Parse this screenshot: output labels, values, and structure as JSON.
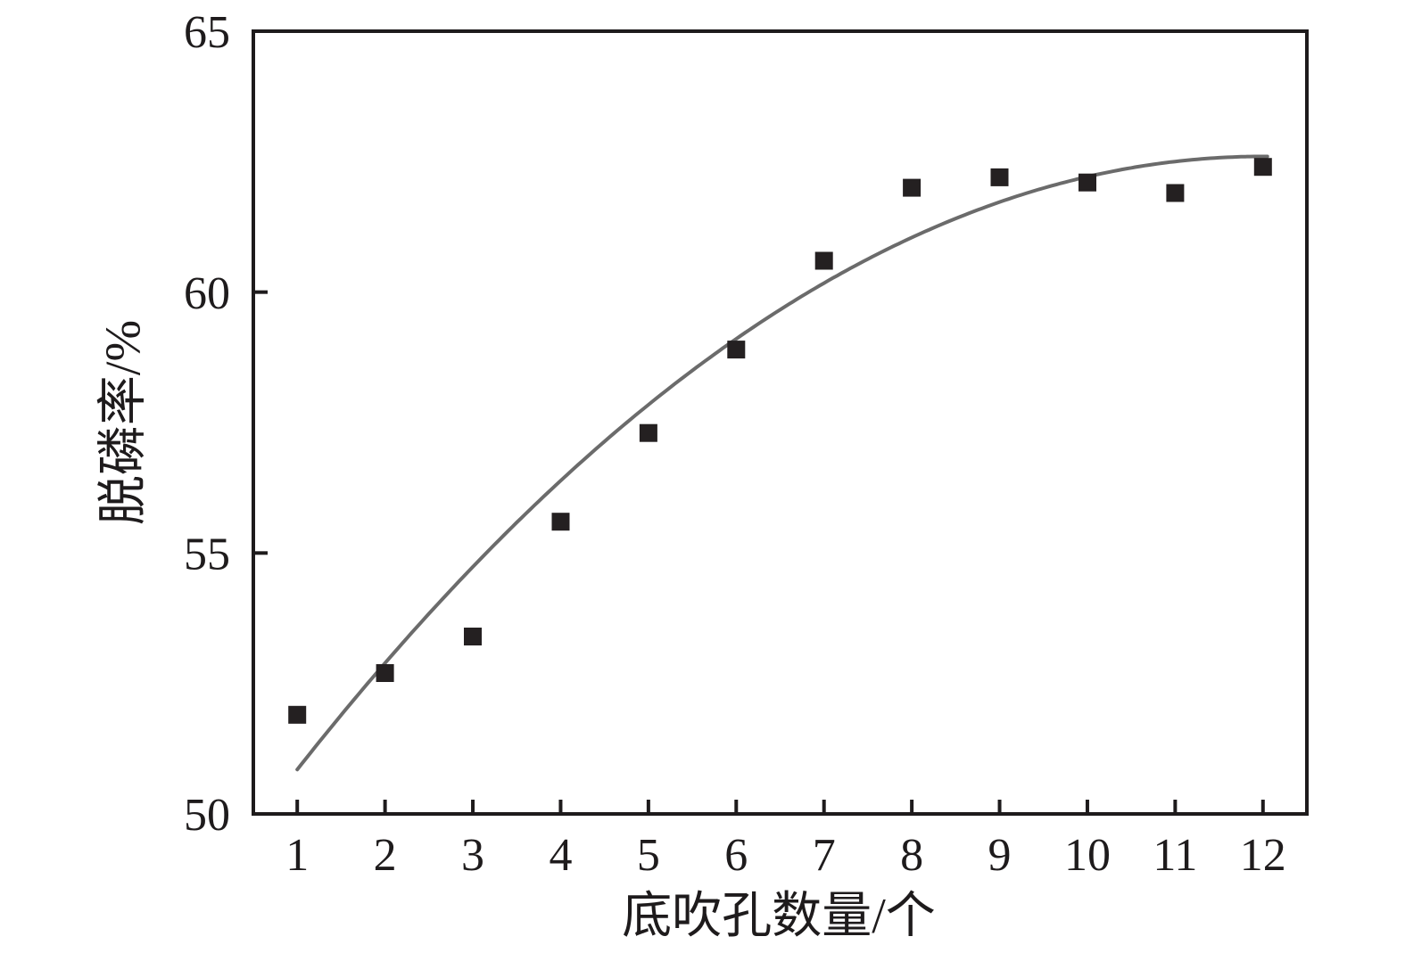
{
  "figure": {
    "background": "#ffffff",
    "axis_color": "#1e1b1c",
    "text_color": "#1e1b1c",
    "curve_color": "#6b6b6b",
    "marker_color": "#242021"
  },
  "chart_data": {
    "type": "scatter",
    "title": "",
    "xlabel": "底吹孔数量/个",
    "ylabel": "脱磷率/%",
    "x": [
      1,
      2,
      3,
      4,
      5,
      6,
      7,
      8,
      9,
      10,
      11,
      12
    ],
    "y": [
      51.9,
      52.7,
      53.4,
      55.6,
      57.3,
      58.9,
      60.6,
      62.0,
      62.2,
      62.1,
      61.9,
      62.4
    ],
    "x_ticks": [
      1,
      2,
      3,
      4,
      5,
      6,
      7,
      8,
      9,
      10,
      11,
      12
    ],
    "y_ticks": [
      50,
      55,
      60,
      65
    ],
    "xlim": [
      0.5,
      12.5
    ],
    "ylim": [
      50,
      65
    ],
    "grid": false,
    "legend": null,
    "marker": "square",
    "fit_curve": {
      "type": "quadratic",
      "equation": "y = 62.6 - 0.0971*(12 - x)^2",
      "vertex_x": 12,
      "vertex_y": 62.6,
      "coefficient": -0.0971,
      "x_start": 1.0,
      "x_end": 12.08
    }
  }
}
